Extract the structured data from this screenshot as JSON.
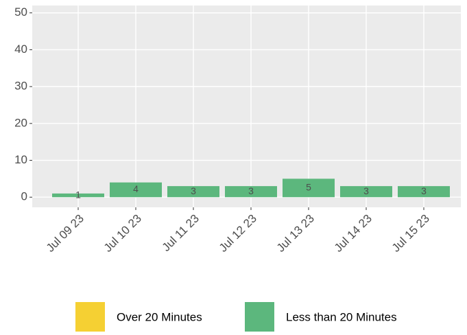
{
  "chart_data": {
    "type": "bar",
    "stacked": true,
    "categories": [
      "Jul 09 23",
      "Jul 10 23",
      "Jul 11 23",
      "Jul 12 23",
      "Jul 13 23",
      "Jul 14 23",
      "Jul 15 23"
    ],
    "series": [
      {
        "name": "Over 20 Minutes",
        "color": "#f5d033",
        "values": [
          0,
          0,
          0,
          0,
          0,
          0,
          0
        ]
      },
      {
        "name": "Less than 20 Minutes",
        "color": "#5cb77d",
        "values": [
          1,
          4,
          3,
          3,
          5,
          3,
          3
        ]
      }
    ],
    "ylim": [
      -2.75,
      52
    ],
    "yticks": [
      0,
      10,
      20,
      30,
      40,
      50
    ],
    "grid": true,
    "legend": "bottom"
  }
}
